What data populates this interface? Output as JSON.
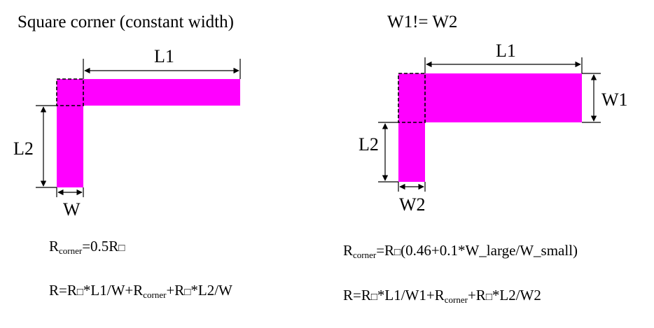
{
  "colors": {
    "trace": "#ff00ff",
    "line": "#000000"
  },
  "left": {
    "title": "Square corner (constant width)",
    "label_l1": "L1",
    "label_l2": "L2",
    "label_w": "W",
    "eq1": {
      "r": "R",
      "corner": "corner",
      "rest": "=0.5R",
      "box": "□"
    },
    "eq2": {
      "p1": "R=R",
      "box1": "□",
      "p2": "*L1/W+R",
      "corner": "corner",
      "p3": "+R",
      "box2": "□",
      "p4": "*L2/W"
    }
  },
  "right": {
    "title": "W1!= W2",
    "label_l1": "L1",
    "label_w1": "W1",
    "label_l2": "L2",
    "label_w2": "W2",
    "eq1": {
      "r": "R",
      "corner": "corner",
      "p1": "=R",
      "box": "□",
      "p2": "(0.46+0.1*W_large/W_small)"
    },
    "eq2": {
      "p1": "R=R",
      "box1": "□",
      "p2": "*L1/W1+R",
      "corner": "corner",
      "p3": "+R",
      "box2": "□",
      "p4": "*L2/W2"
    }
  }
}
